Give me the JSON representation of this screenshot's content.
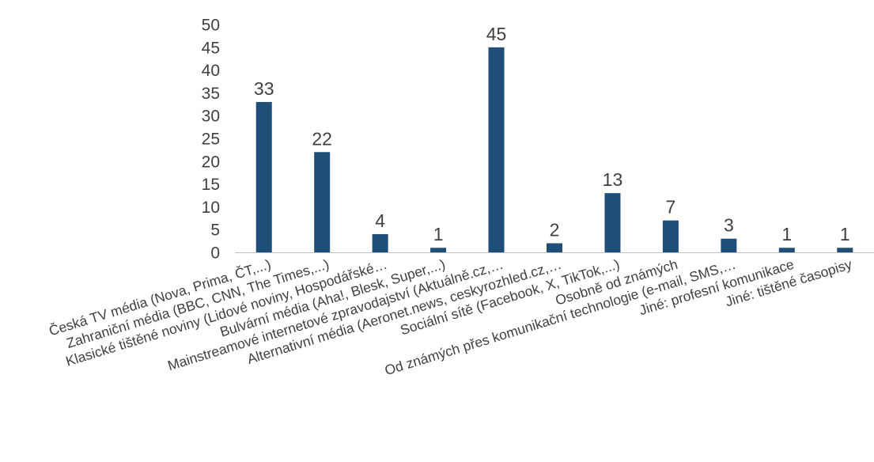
{
  "chart_data": {
    "type": "bar",
    "categories": [
      "Česká TV média (Nova, Prima, ČT,...)",
      "Zahraniční média (BBC, CNN, The Times,...)",
      "Klasické tištěné noviny (Lidové noviny, Hospodářské…",
      "Bulvární média (Aha!, Blesk, Super,...)",
      "Mainstreamové internetové zpravodajství (Aktuálně.cz,…",
      "Alternativní média (Aeronet.news, ceskyrozhled.cz,…",
      "Sociální sítě (Facebook, X, TikTok,...)",
      "Osobně od známých",
      "Od známých přes komunikační technologie (e-mail, SMS,…",
      "Jiné: profesní komunikace",
      "Jiné: tištěné časopisy"
    ],
    "values": [
      33,
      22,
      4,
      1,
      45,
      2,
      13,
      7,
      3,
      1,
      1
    ],
    "data_labels": [
      "33",
      "22",
      "4",
      "1",
      "45",
      "2",
      "13",
      "7",
      "3",
      "1",
      "1"
    ],
    "yticks": [
      "0",
      "5",
      "10",
      "15",
      "20",
      "25",
      "30",
      "35",
      "40",
      "45",
      "50"
    ],
    "ylim": [
      0,
      50
    ],
    "grid": false,
    "legend": "none",
    "bar_color": "#1f4e79",
    "axis_color": "#bfbfbf",
    "text_color": "#404040"
  }
}
